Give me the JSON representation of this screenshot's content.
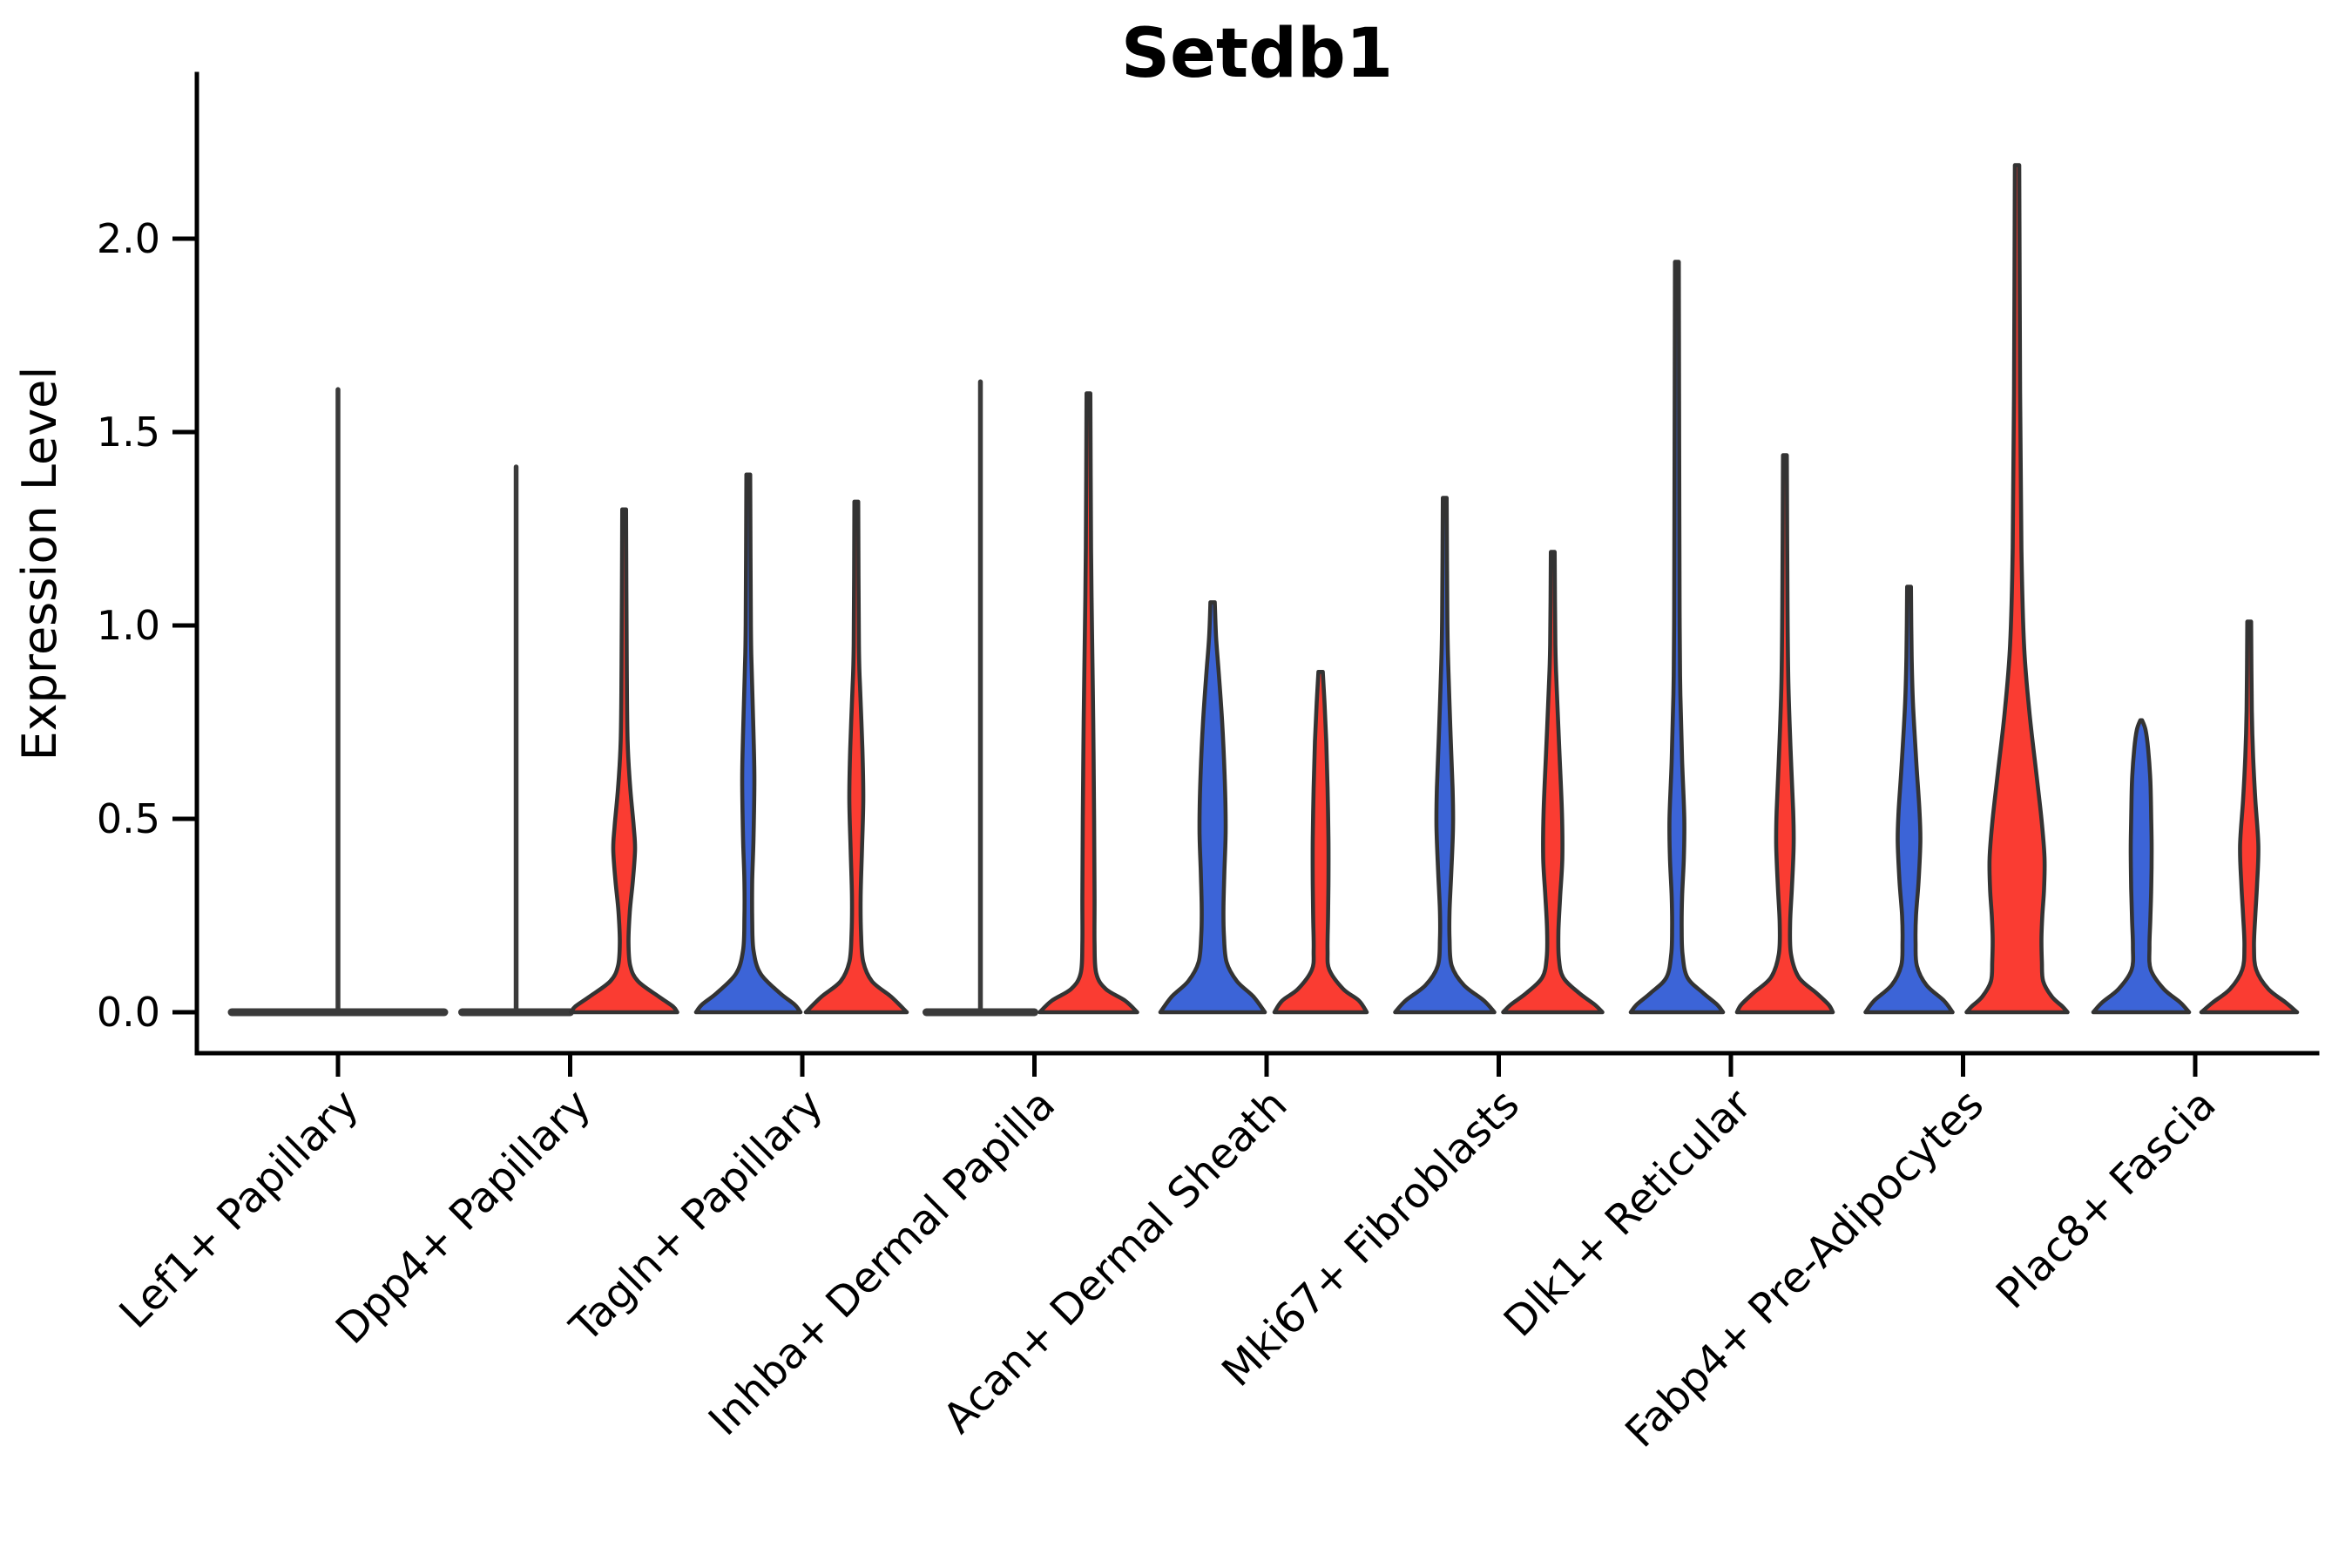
{
  "chart_data": {
    "type": "violin",
    "title": "Setdb1",
    "xlabel": "",
    "ylabel": "Expression Level",
    "ytick_labels": [
      "0.0",
      "0.5",
      "1.0",
      "1.5",
      "2.0"
    ],
    "ytick_values": [
      0.0,
      0.5,
      1.0,
      1.5,
      2.0
    ],
    "ylim": [
      -0.106,
      2.425
    ],
    "grid": false,
    "legend": "none",
    "categories": [
      "Lef1+ Papillary",
      "Dpp4+ Papillary",
      "Tagln+ Papillary",
      "Inhba+ Dermal Papilla",
      "Acan+ Dermal Sheath",
      "Mki67+ Fibroblasts",
      "Dlk1+ Reticular",
      "Fabp4+ Pre-Adipocytes",
      "Plac8+ Fascia"
    ],
    "groups": {
      "blue": "#3C64D7",
      "red": "#FA3C32",
      "unsplit_outline_only": "#3A3A3A"
    },
    "note": "Split violin plot; each category has a blue (left) and red (right) violin of Setdb1 expression. Flat violins are all-zero distributions with a thin density spike to the max value. Profile points are [expression_value, half_width_px].",
    "violins": [
      {
        "category": "Lef1+ Papillary",
        "slug": "lef1-papillary",
        "parts": [
          {
            "group": "unsplit",
            "position": "center",
            "flat": true,
            "half_width": 122,
            "max": 1.61
          }
        ]
      },
      {
        "category": "Dpp4+ Papillary",
        "slug": "dpp4-papillary",
        "parts": [
          {
            "group": "blue",
            "position": "left",
            "flat": true,
            "half_width": 62,
            "max": 1.41
          },
          {
            "group": "red",
            "position": "right",
            "flat": false,
            "max": 1.3,
            "profile": [
              [
                1.3,
                2.2
              ],
              [
                0.9,
                3
              ],
              [
                0.7,
                4
              ],
              [
                0.58,
                7
              ],
              [
                0.48,
                11
              ],
              [
                0.42,
                12.5
              ],
              [
                0.34,
                10
              ],
              [
                0.26,
                6.5
              ],
              [
                0.18,
                5
              ],
              [
                0.12,
                7
              ],
              [
                0.08,
                16
              ],
              [
                0.04,
                40
              ],
              [
                0.015,
                56
              ],
              [
                0,
                61
              ]
            ]
          }
        ]
      },
      {
        "category": "Tagln+ Papillary",
        "slug": "tagln-papillary",
        "parts": [
          {
            "group": "blue",
            "position": "left",
            "flat": false,
            "max": 1.39,
            "profile": [
              [
                1.39,
                2.2
              ],
              [
                1.0,
                3
              ],
              [
                0.88,
                4
              ],
              [
                0.72,
                6
              ],
              [
                0.6,
                7
              ],
              [
                0.45,
                6
              ],
              [
                0.34,
                4.5
              ],
              [
                0.24,
                4.5
              ],
              [
                0.16,
                6
              ],
              [
                0.1,
                14
              ],
              [
                0.05,
                36
              ],
              [
                0.02,
                53
              ],
              [
                0,
                60
              ]
            ]
          },
          {
            "group": "red",
            "position": "right",
            "flat": false,
            "max": 1.32,
            "profile": [
              [
                1.32,
                2.2
              ],
              [
                0.95,
                3
              ],
              [
                0.83,
                4.5
              ],
              [
                0.68,
                7
              ],
              [
                0.55,
                8
              ],
              [
                0.42,
                6.5
              ],
              [
                0.3,
                5
              ],
              [
                0.2,
                5.5
              ],
              [
                0.13,
                8
              ],
              [
                0.08,
                18
              ],
              [
                0.04,
                40
              ],
              [
                0,
                58
              ]
            ]
          }
        ]
      },
      {
        "category": "Inhba+ Dermal Papilla",
        "slug": "inhba-dermal-papilla",
        "parts": [
          {
            "group": "blue",
            "position": "left",
            "flat": true,
            "half_width": 62,
            "max": 1.63
          },
          {
            "group": "red",
            "position": "right",
            "flat": false,
            "max": 1.6,
            "profile": [
              [
                1.6,
                2.2
              ],
              [
                1.2,
                3
              ],
              [
                1.0,
                4
              ],
              [
                0.75,
                5.5
              ],
              [
                0.5,
                6.5
              ],
              [
                0.3,
                7
              ],
              [
                0.18,
                7
              ],
              [
                0.1,
                9
              ],
              [
                0.06,
                20
              ],
              [
                0.03,
                42
              ],
              [
                0,
                56
              ]
            ]
          }
        ]
      },
      {
        "category": "Acan+ Dermal Sheath",
        "slug": "acan-dermal-sheath",
        "parts": [
          {
            "group": "blue",
            "position": "left",
            "flat": false,
            "max": 1.06,
            "profile": [
              [
                1.06,
                2.5
              ],
              [
                0.97,
                4
              ],
              [
                0.88,
                7
              ],
              [
                0.75,
                11
              ],
              [
                0.6,
                14
              ],
              [
                0.47,
                15
              ],
              [
                0.36,
                13.5
              ],
              [
                0.27,
                12.5
              ],
              [
                0.2,
                13
              ],
              [
                0.13,
                16
              ],
              [
                0.08,
                28
              ],
              [
                0.04,
                47
              ],
              [
                0,
                60
              ]
            ]
          },
          {
            "group": "red",
            "position": "right",
            "flat": false,
            "max": 0.88,
            "profile": [
              [
                0.88,
                2.5
              ],
              [
                0.8,
                4.5
              ],
              [
                0.7,
                6.5
              ],
              [
                0.58,
                8
              ],
              [
                0.45,
                9
              ],
              [
                0.33,
                9
              ],
              [
                0.24,
                8.5
              ],
              [
                0.16,
                8
              ],
              [
                0.11,
                10
              ],
              [
                0.06,
                26
              ],
              [
                0.03,
                44
              ],
              [
                0,
                53
              ]
            ]
          }
        ]
      },
      {
        "category": "Mki67+ Fibroblasts",
        "slug": "mki67-fibroblasts",
        "parts": [
          {
            "group": "blue",
            "position": "left",
            "flat": false,
            "max": 1.33,
            "profile": [
              [
                1.33,
                2.2
              ],
              [
                1.02,
                3
              ],
              [
                0.9,
                4
              ],
              [
                0.73,
                6.5
              ],
              [
                0.58,
                9
              ],
              [
                0.48,
                9.5
              ],
              [
                0.36,
                7.5
              ],
              [
                0.26,
                5.5
              ],
              [
                0.19,
                5.5
              ],
              [
                0.12,
                8
              ],
              [
                0.07,
                22
              ],
              [
                0.03,
                45
              ],
              [
                0,
                57
              ]
            ]
          },
          {
            "group": "red",
            "position": "right",
            "flat": false,
            "max": 1.19,
            "profile": [
              [
                1.19,
                2.2
              ],
              [
                0.95,
                3
              ],
              [
                0.84,
                4.5
              ],
              [
                0.68,
                7.5
              ],
              [
                0.52,
                10.5
              ],
              [
                0.4,
                11
              ],
              [
                0.3,
                8.5
              ],
              [
                0.21,
                6.5
              ],
              [
                0.14,
                7
              ],
              [
                0.09,
                12
              ],
              [
                0.05,
                30
              ],
              [
                0.02,
                48
              ],
              [
                0,
                57
              ]
            ]
          }
        ]
      },
      {
        "category": "Dlk1+ Reticular",
        "slug": "dlk1-reticular",
        "parts": [
          {
            "group": "blue",
            "position": "left",
            "flat": false,
            "max": 1.94,
            "profile": [
              [
                1.94,
                2.2
              ],
              [
                1.3,
                2.8
              ],
              [
                1.0,
                3.2
              ],
              [
                0.82,
                4
              ],
              [
                0.65,
                6
              ],
              [
                0.5,
                8.5
              ],
              [
                0.4,
                8
              ],
              [
                0.3,
                6
              ],
              [
                0.22,
                5.5
              ],
              [
                0.15,
                6.5
              ],
              [
                0.09,
                12
              ],
              [
                0.05,
                30
              ],
              [
                0.02,
                46
              ],
              [
                0,
                53
              ]
            ]
          },
          {
            "group": "red",
            "position": "right",
            "flat": false,
            "max": 1.44,
            "profile": [
              [
                1.44,
                2.2
              ],
              [
                1.05,
                3
              ],
              [
                0.85,
                4
              ],
              [
                0.68,
                6.5
              ],
              [
                0.52,
                9.5
              ],
              [
                0.43,
                10
              ],
              [
                0.32,
                8
              ],
              [
                0.23,
                6
              ],
              [
                0.15,
                7
              ],
              [
                0.09,
                16
              ],
              [
                0.05,
                36
              ],
              [
                0.02,
                50
              ],
              [
                0,
                55
              ]
            ]
          }
        ]
      },
      {
        "category": "Fabp4+ Pre-Adipocytes",
        "slug": "fabp4-pre-adipocytes",
        "parts": [
          {
            "group": "blue",
            "position": "left",
            "flat": false,
            "max": 1.1,
            "profile": [
              [
                1.1,
                2.2
              ],
              [
                0.92,
                3
              ],
              [
                0.8,
                4.5
              ],
              [
                0.64,
                8.5
              ],
              [
                0.52,
                12
              ],
              [
                0.44,
                13
              ],
              [
                0.34,
                11
              ],
              [
                0.25,
                8
              ],
              [
                0.18,
                7.5
              ],
              [
                0.12,
                9
              ],
              [
                0.07,
                20
              ],
              [
                0.03,
                40
              ],
              [
                0,
                50
              ]
            ]
          },
          {
            "group": "red",
            "position": "right",
            "flat": false,
            "max": 2.19,
            "profile": [
              [
                2.19,
                2.5
              ],
              [
                1.6,
                3.5
              ],
              [
                1.2,
                5
              ],
              [
                0.95,
                8
              ],
              [
                0.78,
                14
              ],
              [
                0.62,
                22
              ],
              [
                0.5,
                28
              ],
              [
                0.4,
                31.5
              ],
              [
                0.32,
                31
              ],
              [
                0.25,
                29
              ],
              [
                0.19,
                28
              ],
              [
                0.13,
                28.5
              ],
              [
                0.08,
                30
              ],
              [
                0.04,
                40
              ],
              [
                0.015,
                52
              ],
              [
                0,
                58
              ]
            ]
          }
        ]
      },
      {
        "category": "Plac8+ Fascia",
        "slug": "plac8-fascia",
        "parts": [
          {
            "group": "blue",
            "position": "left",
            "flat": false,
            "max": 0.755,
            "profile": [
              [
                0.755,
                1
              ],
              [
                0.73,
                5
              ],
              [
                0.68,
                8
              ],
              [
                0.6,
                10.5
              ],
              [
                0.5,
                11.5
              ],
              [
                0.42,
                12
              ],
              [
                0.32,
                11.5
              ],
              [
                0.24,
                10.5
              ],
              [
                0.17,
                9.5
              ],
              [
                0.11,
                11
              ],
              [
                0.06,
                26
              ],
              [
                0.025,
                45
              ],
              [
                0,
                55
              ]
            ]
          },
          {
            "group": "red",
            "position": "right",
            "flat": false,
            "max": 1.01,
            "profile": [
              [
                1.01,
                2.2
              ],
              [
                0.78,
                3
              ],
              [
                0.66,
                4.5
              ],
              [
                0.55,
                7
              ],
              [
                0.43,
                10.5
              ],
              [
                0.33,
                9
              ],
              [
                0.25,
                7
              ],
              [
                0.17,
                5.5
              ],
              [
                0.11,
                8
              ],
              [
                0.06,
                22
              ],
              [
                0.025,
                42
              ],
              [
                0,
                55
              ]
            ]
          }
        ]
      }
    ],
    "style": {
      "outline_color": "#333333",
      "outline_width": 4.6,
      "axis_color": "#000000",
      "background": "#ffffff"
    }
  }
}
